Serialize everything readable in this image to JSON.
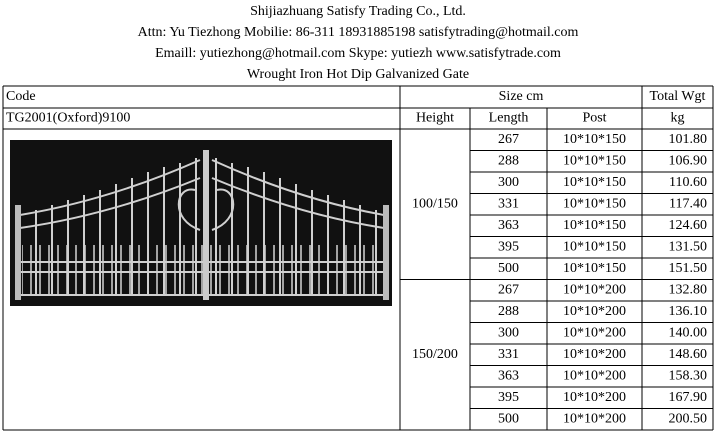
{
  "header": {
    "company": "Shijiazhuang Satisfy Trading Co., Ltd.",
    "attn": "Attn: Yu Tiezhong Mobilie: 86-311 18931885198   satisfytrading@hotmail.com",
    "contact": "Emaill: yutiezhong@hotmail.com    Skype: yutiezh    www.satisfytrade.com",
    "product": "Wrought Iron Hot Dip Galvanized Gate"
  },
  "table": {
    "code_label": "Code",
    "code": "TG2001(Oxford)9100",
    "size_label": "Size  cm",
    "weight_label": "Total Wgt",
    "height_label": "Height",
    "length_label": "Length",
    "post_label": "Post",
    "weight_unit": "kg",
    "groups": [
      {
        "height": "100/150",
        "rows": [
          [
            "267",
            "10*10*150",
            "101.80"
          ],
          [
            "288",
            "10*10*150",
            "106.90"
          ],
          [
            "300",
            "10*10*150",
            "110.60"
          ],
          [
            "331",
            "10*10*150",
            "117.40"
          ],
          [
            "363",
            "10*10*150",
            "124.60"
          ],
          [
            "395",
            "10*10*150",
            "131.50"
          ],
          [
            "500",
            "10*10*150",
            "151.50"
          ]
        ]
      },
      {
        "height": "150/200",
        "rows": [
          [
            "267",
            "10*10*200",
            "132.80"
          ],
          [
            "288",
            "10*10*200",
            "136.10"
          ],
          [
            "300",
            "10*10*200",
            "140.00"
          ],
          [
            "331",
            "10*10*200",
            "148.60"
          ],
          [
            "363",
            "10*10*200",
            "158.30"
          ],
          [
            "395",
            "10*10*200",
            "167.90"
          ],
          [
            "500",
            "10*10*200",
            "200.50"
          ]
        ]
      }
    ]
  }
}
